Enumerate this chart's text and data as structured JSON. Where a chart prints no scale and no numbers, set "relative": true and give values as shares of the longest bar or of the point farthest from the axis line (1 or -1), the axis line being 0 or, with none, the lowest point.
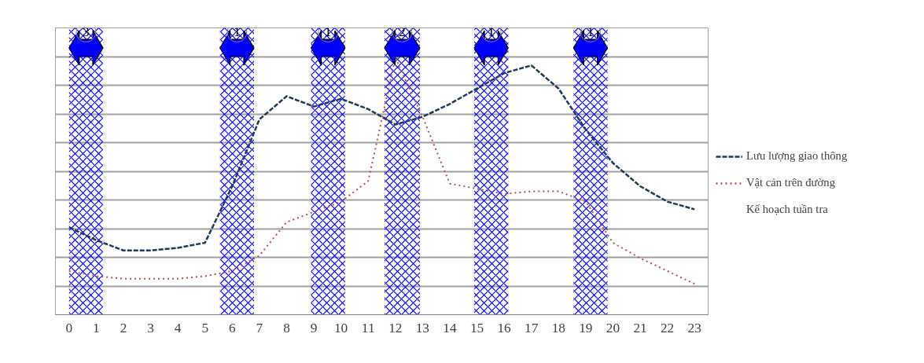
{
  "chart_data": {
    "type": "line",
    "relative": true,
    "x": [
      0,
      1,
      2,
      3,
      4,
      5,
      6,
      7,
      8,
      9,
      10,
      11,
      12,
      13,
      14,
      15,
      16,
      17,
      18,
      19,
      20,
      21,
      22,
      23
    ],
    "xlim": [
      -0.5,
      23.5
    ],
    "xticks": [
      0,
      1,
      2,
      3,
      4,
      5,
      6,
      7,
      8,
      9,
      10,
      11,
      12,
      13,
      14,
      15,
      16,
      17,
      18,
      19,
      20,
      21,
      22,
      23
    ],
    "series": [
      {
        "name": "Lưu lượng giao thông",
        "color": "#1f3b5c",
        "line_style": "dashed",
        "values": [
          0.34,
          0.29,
          0.25,
          0.25,
          0.26,
          0.28,
          0.5,
          0.76,
          0.85,
          0.81,
          0.84,
          0.8,
          0.74,
          0.77,
          0.82,
          0.88,
          0.94,
          0.97,
          0.88,
          0.72,
          0.59,
          0.5,
          0.44,
          0.41
        ]
      },
      {
        "name": "Vật cản trên đường",
        "color": "#c0504d",
        "line_style": "dotted",
        "values": [
          0.17,
          0.15,
          0.14,
          0.14,
          0.14,
          0.15,
          0.17,
          0.23,
          0.36,
          0.4,
          0.44,
          0.52,
          1.0,
          0.77,
          0.51,
          0.49,
          0.47,
          0.48,
          0.48,
          0.44,
          0.28,
          0.22,
          0.17,
          0.12
        ]
      }
    ],
    "bands": [
      {
        "axis": "x",
        "from": 0,
        "to": 1.25,
        "label": "3",
        "color": "#0000ff"
      },
      {
        "axis": "x",
        "from": 5.55,
        "to": 6.8,
        "label": "1",
        "color": "#0000ff"
      },
      {
        "axis": "x",
        "from": 8.9,
        "to": 10.15,
        "label": "1",
        "color": "#0000ff"
      },
      {
        "axis": "x",
        "from": 11.6,
        "to": 12.9,
        "label": "2",
        "color": "#0000ff"
      },
      {
        "axis": "x",
        "from": 14.9,
        "to": 16.15,
        "label": "1",
        "color": "#0000ff"
      },
      {
        "axis": "x",
        "from": 18.55,
        "to": 19.8,
        "label": "1",
        "color": "#0000ff"
      }
    ],
    "annotations": [
      "Kế hoạch tuần tra"
    ],
    "grid": "y",
    "legend": "right"
  }
}
